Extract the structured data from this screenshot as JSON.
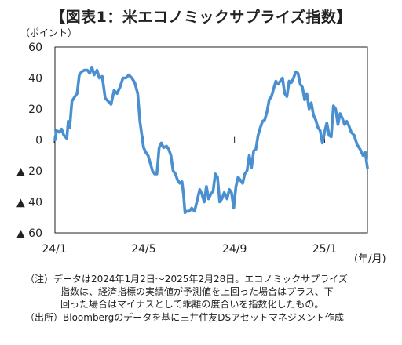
{
  "title": "【図表1：米エコノミックサプライズ指数】",
  "unit_y": "（ポイント）",
  "unit_x": "(年/月)",
  "notes": {
    "line1": "（注）データは2024年1月2日～2025年2月28日。エコノミックサプライズ",
    "line2": "指数は、経済指標の実績値が予測値を上回った場合はプラス、下",
    "line3": "回った場合はマイナスとして乖離の度合いを指数化したもの。",
    "line4": "（出所）Bloombergのデータを基に三井住友DSアセットマネジメント作成"
  },
  "chart_data": {
    "type": "line",
    "title": "【図表1：米エコノミックサプライズ指数】",
    "ylabel": "（ポイント）",
    "xlabel": "(年/月)",
    "ylim": [
      -60,
      60
    ],
    "xlim": [
      "2024-01-02",
      "2025-02-28"
    ],
    "y_ticks": [
      60,
      40,
      20,
      0,
      -20,
      -40,
      -60
    ],
    "y_tick_labels": [
      "60",
      "40",
      "20",
      "0",
      "▲ 20",
      "▲ 40",
      "▲ 60"
    ],
    "x_ticks": [
      "2024-01-01",
      "2024-05-01",
      "2024-09-01",
      "2025-01-01"
    ],
    "x_tick_labels": [
      "24/1",
      "24/5",
      "24/9",
      "25/1"
    ],
    "line_color": "#4a90d0",
    "grid": false,
    "series": [
      {
        "points": [
          [
            "2024-01-02",
            0
          ],
          [
            "2024-01-04",
            6
          ],
          [
            "2024-01-08",
            5
          ],
          [
            "2024-01-11",
            7
          ],
          [
            "2024-01-14",
            3
          ],
          [
            "2024-01-16",
            2
          ],
          [
            "2024-01-18",
            1
          ],
          [
            "2024-01-20",
            12
          ],
          [
            "2024-01-22",
            8
          ],
          [
            "2024-01-25",
            25
          ],
          [
            "2024-01-29",
            28
          ],
          [
            "2024-02-01",
            30
          ],
          [
            "2024-02-04",
            42
          ],
          [
            "2024-02-07",
            44
          ],
          [
            "2024-02-11",
            45
          ],
          [
            "2024-02-15",
            45
          ],
          [
            "2024-02-18",
            43
          ],
          [
            "2024-02-21",
            47
          ],
          [
            "2024-02-24",
            42
          ],
          [
            "2024-02-28",
            45
          ],
          [
            "2024-03-02",
            40
          ],
          [
            "2024-03-06",
            41
          ],
          [
            "2024-03-10",
            27
          ],
          [
            "2024-03-14",
            25
          ],
          [
            "2024-03-18",
            23
          ],
          [
            "2024-03-22",
            32
          ],
          [
            "2024-03-26",
            30
          ],
          [
            "2024-03-30",
            34
          ],
          [
            "2024-04-03",
            40
          ],
          [
            "2024-04-07",
            40
          ],
          [
            "2024-04-11",
            42
          ],
          [
            "2024-04-15",
            40
          ],
          [
            "2024-04-19",
            37
          ],
          [
            "2024-04-23",
            30
          ],
          [
            "2024-04-26",
            12
          ],
          [
            "2024-04-28",
            5
          ],
          [
            "2024-05-01",
            -5
          ],
          [
            "2024-05-04",
            -8
          ],
          [
            "2024-05-07",
            -10
          ],
          [
            "2024-05-10",
            -15
          ],
          [
            "2024-05-13",
            -20
          ],
          [
            "2024-05-16",
            -22
          ],
          [
            "2024-05-19",
            -22
          ],
          [
            "2024-05-22",
            -5
          ],
          [
            "2024-05-25",
            -2
          ],
          [
            "2024-05-28",
            -5
          ],
          [
            "2024-06-01",
            -4
          ],
          [
            "2024-06-04",
            -6
          ],
          [
            "2024-06-07",
            -10
          ],
          [
            "2024-06-10",
            -20
          ],
          [
            "2024-06-13",
            -22
          ],
          [
            "2024-06-16",
            -26
          ],
          [
            "2024-06-19",
            -28
          ],
          [
            "2024-06-22",
            -27
          ],
          [
            "2024-06-24",
            -35
          ],
          [
            "2024-06-26",
            -47
          ],
          [
            "2024-06-28",
            -46
          ],
          [
            "2024-07-02",
            -46
          ],
          [
            "2024-07-05",
            -44
          ],
          [
            "2024-07-09",
            -46
          ],
          [
            "2024-07-13",
            -38
          ],
          [
            "2024-07-16",
            -32
          ],
          [
            "2024-07-19",
            -35
          ],
          [
            "2024-07-22",
            -40
          ],
          [
            "2024-07-25",
            -30
          ],
          [
            "2024-07-28",
            -38
          ],
          [
            "2024-07-31",
            -35
          ],
          [
            "2024-08-03",
            -33
          ],
          [
            "2024-08-06",
            -22
          ],
          [
            "2024-08-09",
            -24
          ],
          [
            "2024-08-12",
            -40
          ],
          [
            "2024-08-15",
            -38
          ],
          [
            "2024-08-18",
            -34
          ],
          [
            "2024-08-22",
            -38
          ],
          [
            "2024-08-25",
            -32
          ],
          [
            "2024-08-28",
            -34
          ],
          [
            "2024-08-31",
            -44
          ],
          [
            "2024-09-03",
            -30
          ],
          [
            "2024-09-06",
            -24
          ],
          [
            "2024-09-09",
            -26
          ],
          [
            "2024-09-12",
            -28
          ],
          [
            "2024-09-15",
            -22
          ],
          [
            "2024-09-18",
            -20
          ],
          [
            "2024-09-21",
            -10
          ],
          [
            "2024-09-24",
            -18
          ],
          [
            "2024-09-27",
            -7
          ],
          [
            "2024-09-30",
            -6
          ],
          [
            "2024-10-03",
            3
          ],
          [
            "2024-10-06",
            8
          ],
          [
            "2024-10-09",
            12
          ],
          [
            "2024-10-12",
            13
          ],
          [
            "2024-10-15",
            18
          ],
          [
            "2024-10-18",
            26
          ],
          [
            "2024-10-21",
            28
          ],
          [
            "2024-10-24",
            33
          ],
          [
            "2024-10-27",
            38
          ],
          [
            "2024-10-30",
            36
          ],
          [
            "2024-11-02",
            38
          ],
          [
            "2024-11-05",
            40
          ],
          [
            "2024-11-08",
            30
          ],
          [
            "2024-11-11",
            28
          ],
          [
            "2024-11-14",
            38
          ],
          [
            "2024-11-17",
            37
          ],
          [
            "2024-11-20",
            40
          ],
          [
            "2024-11-23",
            44
          ],
          [
            "2024-11-26",
            43
          ],
          [
            "2024-11-29",
            36
          ],
          [
            "2024-12-02",
            34
          ],
          [
            "2024-12-05",
            26
          ],
          [
            "2024-12-08",
            30
          ],
          [
            "2024-12-11",
            20
          ],
          [
            "2024-12-14",
            24
          ],
          [
            "2024-12-17",
            16
          ],
          [
            "2024-12-20",
            13
          ],
          [
            "2024-12-23",
            8
          ],
          [
            "2024-12-26",
            6
          ],
          [
            "2024-12-29",
            -2
          ],
          [
            "2025-01-01",
            5
          ],
          [
            "2025-01-04",
            11
          ],
          [
            "2025-01-07",
            3
          ],
          [
            "2025-01-10",
            2
          ],
          [
            "2025-01-13",
            22
          ],
          [
            "2025-01-16",
            20
          ],
          [
            "2025-01-19",
            10
          ],
          [
            "2025-01-22",
            17
          ],
          [
            "2025-01-25",
            14
          ],
          [
            "2025-01-28",
            10
          ],
          [
            "2025-01-31",
            12
          ],
          [
            "2025-02-03",
            9
          ],
          [
            "2025-02-06",
            5
          ],
          [
            "2025-02-10",
            3
          ],
          [
            "2025-02-14",
            -3
          ],
          [
            "2025-02-18",
            -6
          ],
          [
            "2025-02-22",
            -10
          ],
          [
            "2025-02-25",
            -8
          ],
          [
            "2025-02-28",
            -18
          ]
        ]
      }
    ]
  }
}
